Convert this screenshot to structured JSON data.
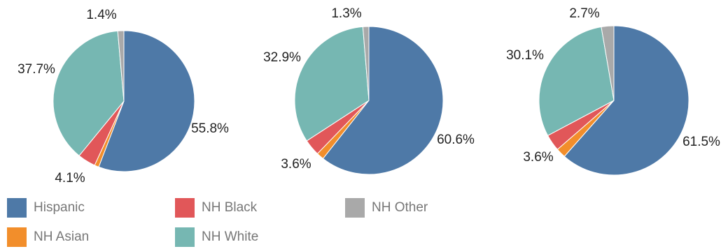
{
  "chart_data": [
    {
      "type": "pie",
      "categories": [
        "Hispanic",
        "NH Asian",
        "NH Black",
        "NH White",
        "NH Other"
      ],
      "values": [
        55.8,
        1.0,
        4.1,
        37.7,
        1.4
      ],
      "labels": [
        "55.8%",
        "",
        "4.1%",
        "37.7%",
        "1.4%"
      ]
    },
    {
      "type": "pie",
      "categories": [
        "Hispanic",
        "NH Asian",
        "NH Black",
        "NH White",
        "NH Other"
      ],
      "values": [
        60.6,
        1.6,
        3.6,
        32.9,
        1.3
      ],
      "labels": [
        "60.6%",
        "",
        "3.6%",
        "32.9%",
        "1.3%"
      ]
    },
    {
      "type": "pie",
      "categories": [
        "Hispanic",
        "NH Asian",
        "NH Black",
        "NH White",
        "NH Other"
      ],
      "values": [
        61.5,
        2.1,
        3.6,
        30.1,
        2.7
      ],
      "labels": [
        "61.5%",
        "",
        "3.6%",
        "30.1%",
        "2.7%"
      ]
    }
  ],
  "legend": {
    "items": [
      {
        "label": "Hispanic",
        "color": "#4e79a7"
      },
      {
        "label": "NH Black",
        "color": "#e15759"
      },
      {
        "label": "NH Other",
        "color": "#a9a9a9"
      },
      {
        "label": "NH Asian",
        "color": "#f28e2b"
      },
      {
        "label": "NH White",
        "color": "#76b7b2"
      }
    ]
  },
  "colors": {
    "Hispanic": "#4e79a7",
    "NH Asian": "#f28e2b",
    "NH Black": "#e15759",
    "NH White": "#76b7b2",
    "NH Other": "#a9a9a9"
  }
}
